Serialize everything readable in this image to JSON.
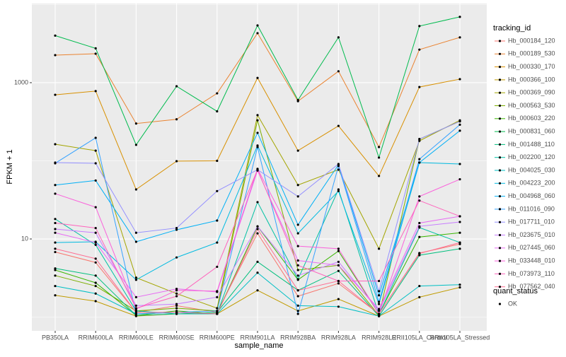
{
  "chart_data": {
    "type": "line",
    "x_label": "sample_name",
    "y_label": "FPKM + 1",
    "log_y": true,
    "ylim": [
      0.667,
      10300
    ],
    "yticks": [
      10,
      1000
    ],
    "minor_yticks": [
      1,
      100,
      10000
    ],
    "grid": true,
    "legend_title": "tracking_id",
    "legend_position": "right",
    "point_color": "#000000",
    "quant_status": {
      "title": "quant_status",
      "levels": [
        "OK"
      ]
    },
    "categories": [
      "PB350LA",
      "RRIM600LA",
      "RRIM600LE",
      "RRIM600SE",
      "RRIM600PE",
      "RRIM901LA",
      "RRIM928BA",
      "RRIM928LA",
      "RRIM928LE",
      "RRII105LA_Control",
      "RRII105LA_Stressed"
    ],
    "series": [
      {
        "name": "Hb_000184_120",
        "color": "#F8766D",
        "values": [
          6.8,
          5,
          1.15,
          1.4,
          1.15,
          11.8,
          1.85,
          2.7,
          1.1,
          6.6,
          8.6
        ]
      },
      {
        "name": "Hb_000189_530",
        "color": "#EA8331",
        "values": [
          2250,
          2350,
          300,
          340,
          730,
          4300,
          580,
          1400,
          150,
          2650,
          3800
        ]
      },
      {
        "name": "Hb_000330_170",
        "color": "#D89000",
        "values": [
          700,
          780,
          43,
          99,
          100,
          1150,
          135,
          280,
          64,
          880,
          1110
        ]
      },
      {
        "name": "Hb_000366_100",
        "color": "#C09B00",
        "values": [
          1.9,
          1.6,
          1.03,
          1.1,
          1.1,
          2.2,
          1.2,
          1.7,
          1.03,
          1.8,
          2.4
        ]
      },
      {
        "name": "Hb_000369_090",
        "color": "#A3A500",
        "values": [
          163,
          135,
          3.2,
          2,
          1.3,
          384,
          49,
          77,
          7.5,
          180,
          330
        ]
      },
      {
        "name": "Hb_000563_530",
        "color": "#7CAE00",
        "values": [
          3.4,
          2.5,
          1.2,
          1.3,
          1.2,
          330,
          4,
          4.6,
          1.05,
          190,
          320
        ]
      },
      {
        "name": "Hb_000603_220",
        "color": "#39B600",
        "values": [
          4,
          2.75,
          1.05,
          1.2,
          1.1,
          14.5,
          3,
          7,
          1.1,
          10.6,
          12
        ]
      },
      {
        "name": "Hb_000831_060",
        "color": "#00BB4E",
        "values": [
          4000,
          2750,
          160,
          900,
          430,
          5400,
          600,
          3800,
          110,
          5300,
          6950
        ]
      },
      {
        "name": "Hb_001488_110",
        "color": "#00BF7D",
        "values": [
          4.2,
          3.4,
          1.05,
          1.1,
          1.15,
          5.1,
          2.2,
          3.9,
          1.03,
          6.2,
          7.5
        ]
      },
      {
        "name": "Hb_002200_120",
        "color": "#00C1A3",
        "values": [
          18,
          8.4,
          1.2,
          1.1,
          1.1,
          29.6,
          3.05,
          43,
          1.08,
          14,
          9
        ]
      },
      {
        "name": "Hb_004025_030",
        "color": "#00BFC4",
        "values": [
          2.5,
          2,
          1.1,
          1.15,
          1.1,
          3.7,
          1.4,
          1.36,
          1.03,
          2.5,
          2.6
        ]
      },
      {
        "name": "Hb_004223_200",
        "color": "#00BAE0",
        "values": [
          9,
          9.2,
          3,
          5.8,
          9,
          157,
          11.8,
          41,
          1.47,
          95,
          91
        ]
      },
      {
        "name": "Hb_004968_060",
        "color": "#00B0F6",
        "values": [
          49,
          56,
          9.2,
          13.1,
          17.2,
          228,
          15.2,
          89,
          1.9,
          95,
          243
        ]
      },
      {
        "name": "Hb_011016_090",
        "color": "#35A2FF",
        "values": [
          93,
          197,
          1.1,
          1.15,
          1.2,
          150,
          1.1,
          86,
          1.57,
          105,
          290
        ]
      },
      {
        "name": "Hb_017711_010",
        "color": "#9590FF",
        "values": [
          95,
          93,
          12,
          13.8,
          41,
          77,
          35,
          91,
          2.15,
          190,
          320
        ]
      },
      {
        "name": "Hb_023675_010",
        "color": "#C77CFF",
        "values": [
          13.4,
          12,
          1.4,
          1.47,
          1.8,
          14.5,
          3.4,
          5.1,
          1.2,
          14.5,
          16.5
        ]
      },
      {
        "name": "Hb_027445_060",
        "color": "#E76BF3",
        "values": [
          12,
          9,
          1.8,
          2.3,
          2.1,
          75,
          5.3,
          4.6,
          1.27,
          16,
          19.5
        ]
      },
      {
        "name": "Hb_033448_010",
        "color": "#FA62DB",
        "values": [
          38,
          25.5,
          1.27,
          2.2,
          2.15,
          79,
          8.1,
          7.5,
          1.1,
          35,
          58
        ]
      },
      {
        "name": "Hb_073973_110",
        "color": "#FF62BC",
        "values": [
          16,
          13.8,
          1.3,
          1.85,
          4.4,
          77,
          4.6,
          2.9,
          2.9,
          31,
          19.5
        ]
      },
      {
        "name": "Hb_077562_040",
        "color": "#FF6C91",
        "values": [
          7.5,
          5.6,
          1.15,
          1.15,
          1.1,
          13.4,
          2.2,
          2.9,
          1.1,
          6.5,
          9
        ]
      }
    ]
  }
}
